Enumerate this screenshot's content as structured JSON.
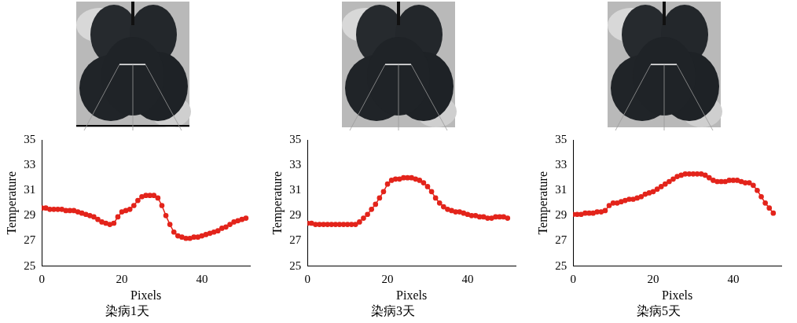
{
  "chart_data": [
    {
      "type": "line",
      "title": "染病1天",
      "x_label": "Pixels",
      "y_label": "Temperature",
      "x": [
        0,
        1,
        2,
        3,
        4,
        5,
        6,
        7,
        8,
        9,
        10,
        11,
        12,
        13,
        14,
        15,
        16,
        17,
        18,
        19,
        20,
        21,
        22,
        23,
        24,
        25,
        26,
        27,
        28,
        29,
        30,
        31,
        32,
        33,
        34,
        35,
        36,
        37,
        38,
        39,
        40,
        41,
        42,
        43,
        44,
        45,
        46,
        47,
        48,
        49,
        50,
        51
      ],
      "values": [
        29.6,
        29.6,
        29.5,
        29.5,
        29.5,
        29.5,
        29.4,
        29.4,
        29.4,
        29.3,
        29.2,
        29.1,
        29.0,
        28.9,
        28.7,
        28.5,
        28.4,
        28.3,
        28.4,
        28.9,
        29.3,
        29.4,
        29.5,
        29.8,
        30.2,
        30.5,
        30.6,
        30.6,
        30.6,
        30.4,
        29.8,
        29.0,
        28.3,
        27.7,
        27.4,
        27.3,
        27.2,
        27.2,
        27.3,
        27.3,
        27.4,
        27.5,
        27.6,
        27.7,
        27.8,
        28.0,
        28.1,
        28.3,
        28.5,
        28.6,
        28.7,
        28.8
      ],
      "color": "#e3241b",
      "marker": "circle",
      "line_style": "solid",
      "xlim": [
        0,
        52
      ],
      "xticks": [
        0,
        20,
        40
      ],
      "ylim": [
        25,
        35
      ],
      "yticks": [
        25,
        27,
        29,
        31,
        33,
        35
      ],
      "grid": false
    },
    {
      "type": "line",
      "title": "染病3天",
      "x_label": "Pixels",
      "y_label": "Temperature",
      "x": [
        0,
        1,
        2,
        3,
        4,
        5,
        6,
        7,
        8,
        9,
        10,
        11,
        12,
        13,
        14,
        15,
        16,
        17,
        18,
        19,
        20,
        21,
        22,
        23,
        24,
        25,
        26,
        27,
        28,
        29,
        30,
        31,
        32,
        33,
        34,
        35,
        36,
        37,
        38,
        39,
        40,
        41,
        42,
        43,
        44,
        45,
        46,
        47,
        48,
        49,
        50
      ],
      "values": [
        28.4,
        28.4,
        28.3,
        28.3,
        28.3,
        28.3,
        28.3,
        28.3,
        28.3,
        28.3,
        28.3,
        28.3,
        28.3,
        28.5,
        28.8,
        29.1,
        29.5,
        29.9,
        30.4,
        30.9,
        31.5,
        31.8,
        31.9,
        31.9,
        32.0,
        32.0,
        32.0,
        31.9,
        31.8,
        31.6,
        31.3,
        30.9,
        30.4,
        30.0,
        29.7,
        29.5,
        29.4,
        29.3,
        29.3,
        29.2,
        29.1,
        29.0,
        29.0,
        28.9,
        28.9,
        28.8,
        28.8,
        28.9,
        28.9,
        28.9,
        28.8
      ],
      "color": "#e3241b",
      "marker": "circle",
      "line_style": "solid",
      "xlim": [
        0,
        52
      ],
      "xticks": [
        0,
        20,
        40
      ],
      "ylim": [
        25,
        35
      ],
      "yticks": [
        25,
        27,
        29,
        31,
        33,
        35
      ],
      "grid": false
    },
    {
      "type": "line",
      "title": "染病5天",
      "x_label": "Pixels",
      "y_label": "Temperature",
      "x": [
        0,
        1,
        2,
        3,
        4,
        5,
        6,
        7,
        8,
        9,
        10,
        11,
        12,
        13,
        14,
        15,
        16,
        17,
        18,
        19,
        20,
        21,
        22,
        23,
        24,
        25,
        26,
        27,
        28,
        29,
        30,
        31,
        32,
        33,
        34,
        35,
        36,
        37,
        38,
        39,
        40,
        41,
        42,
        43,
        44,
        45,
        46,
        47,
        48,
        49,
        50
      ],
      "values": [
        29.1,
        29.1,
        29.1,
        29.2,
        29.2,
        29.2,
        29.3,
        29.3,
        29.4,
        29.8,
        30.0,
        30.0,
        30.1,
        30.2,
        30.3,
        30.3,
        30.4,
        30.5,
        30.7,
        30.8,
        30.9,
        31.1,
        31.3,
        31.5,
        31.7,
        31.9,
        32.1,
        32.2,
        32.3,
        32.3,
        32.3,
        32.3,
        32.3,
        32.2,
        32.0,
        31.8,
        31.7,
        31.7,
        31.7,
        31.8,
        31.8,
        31.8,
        31.7,
        31.6,
        31.6,
        31.4,
        31.0,
        30.5,
        30.0,
        29.6,
        29.2
      ],
      "color": "#e3241b",
      "marker": "circle",
      "line_style": "solid",
      "xlim": [
        0,
        52
      ],
      "xticks": [
        0,
        20,
        40
      ],
      "ylim": [
        25,
        35
      ],
      "yticks": [
        25,
        27,
        29,
        31,
        33,
        35
      ],
      "grid": false
    }
  ]
}
